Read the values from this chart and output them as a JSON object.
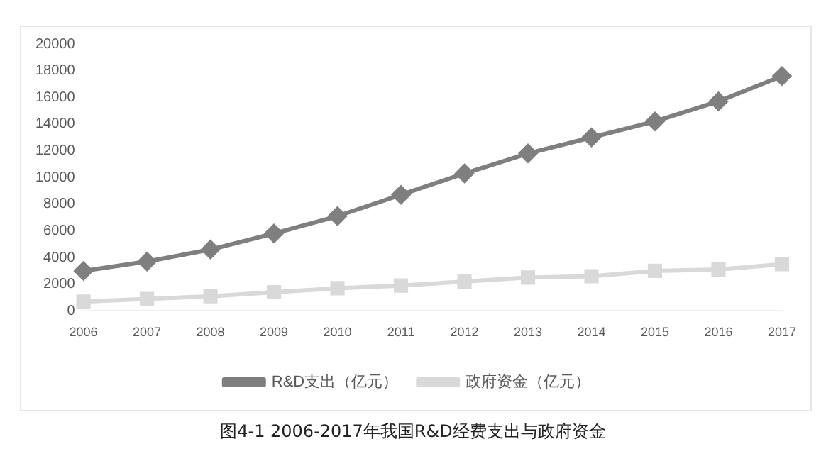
{
  "chart_data": {
    "type": "line",
    "categories": [
      "2006",
      "2007",
      "2008",
      "2009",
      "2010",
      "2011",
      "2012",
      "2013",
      "2014",
      "2015",
      "2016",
      "2017"
    ],
    "series": [
      {
        "name": "R&D支出（亿元）",
        "color": "#7f7f7f",
        "marker": "diamond",
        "values": [
          3000,
          3700,
          4600,
          5800,
          7100,
          8700,
          10300,
          11800,
          13000,
          14200,
          15700,
          17600
        ]
      },
      {
        "name": "政府资金（亿元）",
        "color": "#d9d9d9",
        "marker": "square",
        "values": [
          700,
          900,
          1100,
          1400,
          1700,
          1900,
          2200,
          2500,
          2600,
          3000,
          3100,
          3500
        ]
      }
    ],
    "ylim": [
      0,
      20000
    ],
    "yticks": [
      0,
      2000,
      4000,
      6000,
      8000,
      10000,
      12000,
      14000,
      16000,
      18000,
      20000
    ],
    "grid": false,
    "legend": "bottom",
    "annotations": [
      "图4-1 2006-2017年我国R&D经费支出与政府资金"
    ]
  }
}
